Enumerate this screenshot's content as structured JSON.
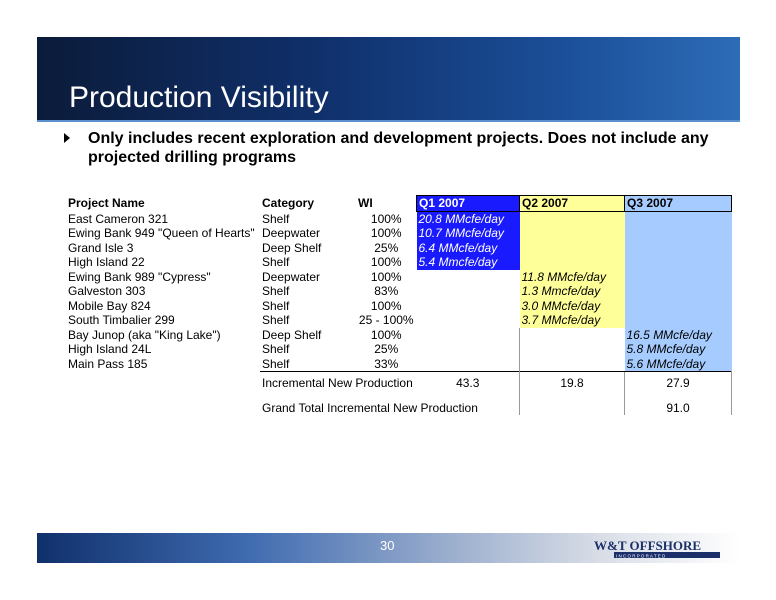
{
  "title": "Production Visibility",
  "bullet": "Only includes recent exploration and development projects.  Does not include any projected drilling programs",
  "table": {
    "headers": {
      "name": "Project Name",
      "category": "Category",
      "wi": "WI",
      "q1": "Q1 2007",
      "q2": "Q2 2007",
      "q3": "Q3 2007"
    },
    "rows": [
      {
        "name": "East Cameron 321",
        "category": "Shelf",
        "wi": "100%",
        "q1": "20.8 MMcfe/day",
        "q2": "",
        "q3": ""
      },
      {
        "name": "Ewing Bank 949 \"Queen of Hearts\"",
        "category": "Deepwater",
        "wi": "100%",
        "q1": "10.7 MMcfe/day",
        "q2": "",
        "q3": ""
      },
      {
        "name": "Grand Isle 3",
        "category": "Deep Shelf",
        "wi": "25%",
        "q1": "6.4 MMcfe/day",
        "q2": "",
        "q3": ""
      },
      {
        "name": "High Island 22",
        "category": "Shelf",
        "wi": "100%",
        "q1": "5.4 Mmcfe/day",
        "q2": "",
        "q3": ""
      },
      {
        "name": "Ewing Bank 989 \"Cypress\"",
        "category": "Deepwater",
        "wi": "100%",
        "q1": "",
        "q2": "11.8 MMcfe/day",
        "q3": ""
      },
      {
        "name": "Galveston 303",
        "category": "Shelf",
        "wi": "83%",
        "q1": "",
        "q2": "1.3 Mmcfe/day",
        "q3": ""
      },
      {
        "name": "Mobile Bay 824",
        "category": "Shelf",
        "wi": "100%",
        "q1": "",
        "q2": "3.0 MMcfe/day",
        "q3": ""
      },
      {
        "name": "South Timbalier 299",
        "category": "Shelf",
        "wi": "25 - 100%",
        "q1": "",
        "q2": "3.7 MMcfe/day",
        "q3": ""
      },
      {
        "name": "Bay Junop (aka \"King Lake\")",
        "category": "Deep Shelf",
        "wi": "100%",
        "q1": "",
        "q2": "",
        "q3": "16.5 MMcfe/day"
      },
      {
        "name": "High Island 24L",
        "category": "Shelf",
        "wi": "25%",
        "q1": "",
        "q2": "",
        "q3": "5.8 MMcfe/day"
      },
      {
        "name": "Main Pass 185",
        "category": "Shelf",
        "wi": "33%",
        "q1": "",
        "q2": "",
        "q3": "5.6 MMcfe/day"
      }
    ],
    "incremental": {
      "label": "Incremental New Production",
      "q1": "43.3",
      "q2": "19.8",
      "q3": "27.9"
    },
    "grand_total": {
      "label": "Grand Total Incremental New Production",
      "value": "91.0"
    }
  },
  "footer": {
    "page_number": "30",
    "logo_text": "W&T OFFSHORE",
    "logo_subtext": "I N C O R P O R A T E D"
  },
  "colors": {
    "q1": "#1a1aff",
    "q2": "#ffff99",
    "q3": "#a6ccff"
  }
}
